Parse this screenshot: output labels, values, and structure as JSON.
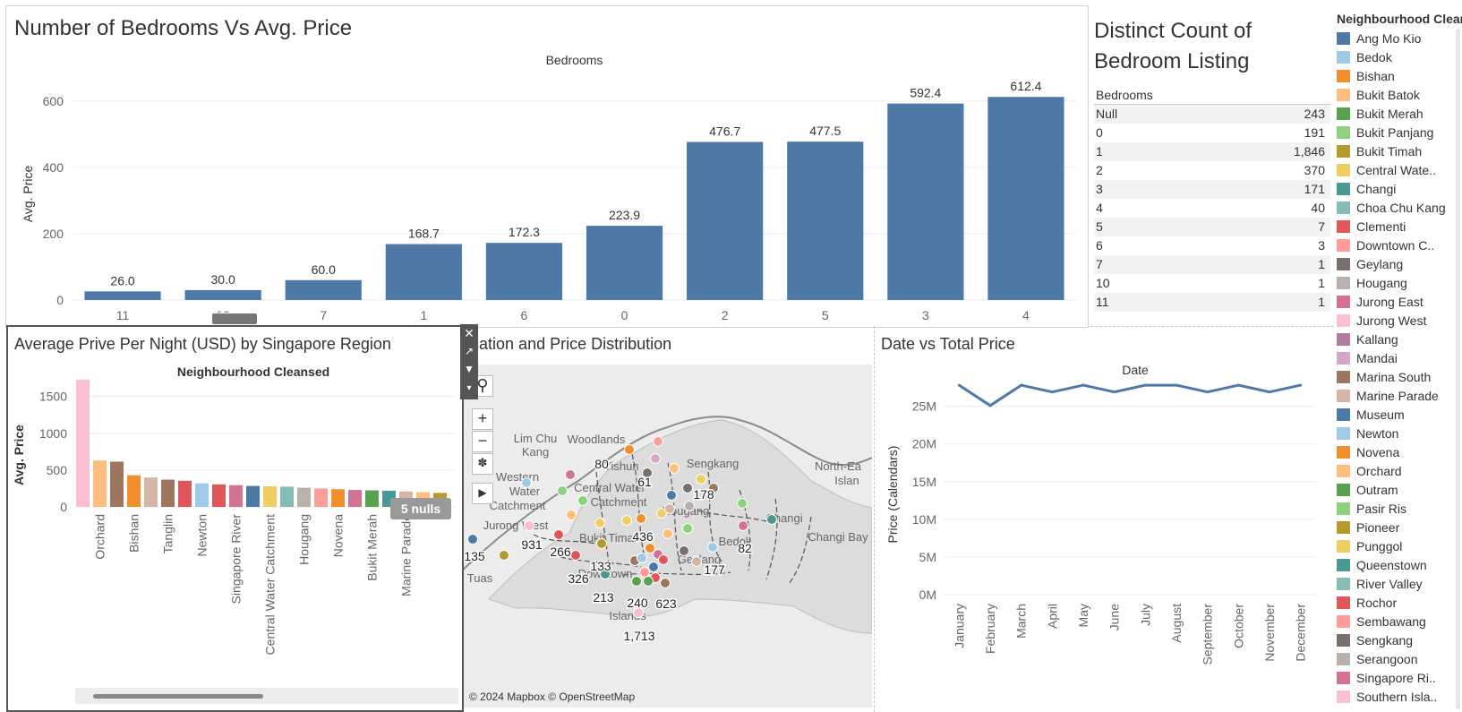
{
  "bedrooms_chart": {
    "title": "Number of Bedrooms Vs Avg. Price",
    "header": "Bedrooms",
    "y_label": "Avg. Price",
    "sort_icon": "sort-descending-icon"
  },
  "count_panel": {
    "title_line1": "Distinct Count of",
    "title_line2": "Bedroom Listing",
    "column_header": "Bedrooms",
    "rows": [
      {
        "label": "Null",
        "value": "243"
      },
      {
        "label": "0",
        "value": "191"
      },
      {
        "label": "1",
        "value": "1,846"
      },
      {
        "label": "2",
        "value": "370"
      },
      {
        "label": "3",
        "value": "171"
      },
      {
        "label": "4",
        "value": "40"
      },
      {
        "label": "5",
        "value": "7"
      },
      {
        "label": "6",
        "value": "3"
      },
      {
        "label": "7",
        "value": "1"
      },
      {
        "label": "10",
        "value": "1"
      },
      {
        "label": "11",
        "value": "1"
      }
    ]
  },
  "region_chart": {
    "title": "Average Prive Per Night (USD) by Singapore Region",
    "header": "Neighbourhood Cleansed",
    "y_label": "Avg. Price",
    "nulls_badge": "5 nulls"
  },
  "map_panel": {
    "title": "Location and Price Distribution",
    "attribution": "© 2024 Mapbox © OpenStreetMap",
    "place_names": [
      "Lim Chu Kang",
      "Woodlands",
      "Yishun",
      "Western Water Catchment",
      "Central Water Catchment",
      "Sengkang",
      "Hougang",
      "Jurong West",
      "Bukit Timah",
      "Bedok",
      "Changi",
      "Changi Bay",
      "North-Eastern Islands",
      "Tuas",
      "Downtown Core",
      "Southern Islands",
      "Geylang"
    ],
    "value_labels": [
      "80",
      "61",
      "178",
      "436",
      "931",
      "266",
      "135",
      "133",
      "326",
      "213",
      "240",
      "623",
      "177",
      "82",
      "1,713"
    ]
  },
  "date_chart": {
    "title": "Date vs Total Price",
    "header": "Date",
    "y_label": "Price (Calendars)"
  },
  "legend": {
    "title": "Neighbourhood Cleansed",
    "items": [
      {
        "label": "Ang Mo Kio",
        "color": "#4e79a7"
      },
      {
        "label": "Bedok",
        "color": "#a0cbe8"
      },
      {
        "label": "Bishan",
        "color": "#f28e2b"
      },
      {
        "label": "Bukit Batok",
        "color": "#ffbe7d"
      },
      {
        "label": "Bukit Merah",
        "color": "#59a14f"
      },
      {
        "label": "Bukit Panjang",
        "color": "#8cd17d"
      },
      {
        "label": "Bukit Timah",
        "color": "#b6992d"
      },
      {
        "label": "Central Wate..",
        "color": "#f1ce63"
      },
      {
        "label": "Changi",
        "color": "#499894"
      },
      {
        "label": "Choa Chu Kang",
        "color": "#86bcb6"
      },
      {
        "label": "Clementi",
        "color": "#e15759"
      },
      {
        "label": "Downtown C..",
        "color": "#ff9d9a"
      },
      {
        "label": "Geylang",
        "color": "#79706e"
      },
      {
        "label": "Hougang",
        "color": "#bab0ac"
      },
      {
        "label": "Jurong East",
        "color": "#d37295"
      },
      {
        "label": "Jurong West",
        "color": "#fabfd2"
      },
      {
        "label": "Kallang",
        "color": "#b07aa1"
      },
      {
        "label": "Mandai",
        "color": "#d4a6c8"
      },
      {
        "label": "Marina South",
        "color": "#9d7660"
      },
      {
        "label": "Marine Parade",
        "color": "#d7b5a6"
      },
      {
        "label": "Museum",
        "color": "#4e79a7"
      },
      {
        "label": "Newton",
        "color": "#a0cbe8"
      },
      {
        "label": "Novena",
        "color": "#f28e2b"
      },
      {
        "label": "Orchard",
        "color": "#ffbe7d"
      },
      {
        "label": "Outram",
        "color": "#59a14f"
      },
      {
        "label": "Pasir Ris",
        "color": "#8cd17d"
      },
      {
        "label": "Pioneer",
        "color": "#b6992d"
      },
      {
        "label": "Punggol",
        "color": "#f1ce63"
      },
      {
        "label": "Queenstown",
        "color": "#499894"
      },
      {
        "label": "River Valley",
        "color": "#86bcb6"
      },
      {
        "label": "Rochor",
        "color": "#e15759"
      },
      {
        "label": "Sembawang",
        "color": "#ff9d9a"
      },
      {
        "label": "Sengkang",
        "color": "#79706e"
      },
      {
        "label": "Serangoon",
        "color": "#bab0ac"
      },
      {
        "label": "Singapore Ri..",
        "color": "#d37295"
      },
      {
        "label": "Southern Isla..",
        "color": "#fabfd2"
      }
    ]
  },
  "chart_data": [
    {
      "type": "bar",
      "title": "Number of Bedrooms Vs Avg. Price",
      "xlabel": "Bedrooms",
      "ylabel": "Avg. Price",
      "categories": [
        "11",
        "10",
        "7",
        "1",
        "6",
        "0",
        "2",
        "5",
        "3",
        "4"
      ],
      "values": [
        26.0,
        30.0,
        60.0,
        168.7,
        172.3,
        223.9,
        476.7,
        477.5,
        592.4,
        612.4
      ],
      "value_labels": [
        "26.0",
        "30.0",
        "60.0",
        "168.7",
        "172.3",
        "223.9",
        "476.7",
        "477.5",
        "592.4",
        "612.4"
      ],
      "yticks": [
        "0",
        "200",
        "400",
        "600"
      ],
      "ylim": [
        0,
        640
      ],
      "color": "#4e79a7",
      "grid": true
    },
    {
      "type": "bar",
      "title": "Average Prive Per Night (USD) by Singapore Region",
      "xlabel": "Neighbourhood Cleansed",
      "ylabel": "Avg. Price",
      "categories": [
        "",
        "Orchard",
        "",
        "Bishan",
        "",
        "Tanglin",
        "",
        "Newton",
        "",
        "Singapore River",
        "",
        "Central Water Catchment",
        "",
        "Hougang",
        "",
        "Novena",
        "",
        "Bukit Merah",
        "",
        "Marine Parade",
        "",
        ""
      ],
      "values": [
        1730,
        630,
        615,
        430,
        400,
        370,
        355,
        320,
        305,
        295,
        285,
        280,
        275,
        260,
        250,
        240,
        230,
        225,
        220,
        210,
        200,
        190
      ],
      "colors": [
        "#fabfd2",
        "#ffbe7d",
        "#9d7660",
        "#f28e2b",
        "#d7b5a6",
        "#9d7660",
        "#e15759",
        "#a0cbe8",
        "#e15759",
        "#d37295",
        "#4e79a7",
        "#f1ce63",
        "#86bcb6",
        "#bab0ac",
        "#ff9d9a",
        "#f28e2b",
        "#d37295",
        "#59a14f",
        "#499894",
        "#d7b5a6",
        "#ffbe7d",
        "#b6992d"
      ],
      "yticks": [
        "0",
        "500",
        "1000",
        "1500"
      ],
      "ylim": [
        0,
        1800
      ],
      "grid": true
    },
    {
      "type": "line",
      "title": "Date vs Total Price",
      "xlabel": "Date",
      "ylabel": "Price (Calendars)",
      "categories": [
        "January",
        "February",
        "March",
        "April",
        "May",
        "June",
        "July",
        "August",
        "September",
        "October",
        "November",
        "December"
      ],
      "values": [
        27.8,
        25.1,
        27.8,
        26.9,
        27.8,
        26.9,
        27.8,
        27.8,
        26.9,
        27.8,
        26.9,
        27.8
      ],
      "value_unit": "M",
      "yticks": [
        "0M",
        "5M",
        "10M",
        "15M",
        "20M",
        "25M"
      ],
      "ylim": [
        0,
        29
      ],
      "color": "#4e79a7",
      "grid": true
    }
  ]
}
